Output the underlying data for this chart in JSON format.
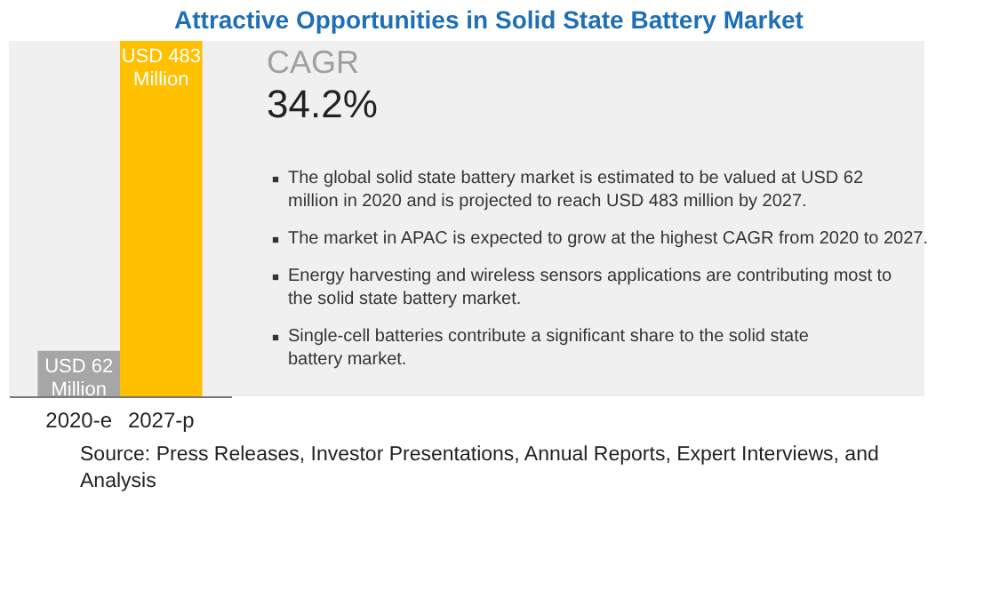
{
  "chart_data": {
    "type": "bar",
    "title": "Attractive Opportunities in Solid State Battery Market",
    "categories": [
      "2020-e",
      "2027-p"
    ],
    "values": [
      62,
      483
    ],
    "colors": [
      "#a6a6a6",
      "#ffc000"
    ],
    "value_labels": [
      "USD 62 Million",
      "USD 483 Million"
    ],
    "annotations": [
      "CAGR",
      "34.2%",
      "The global solid state battery market is estimated to be valued at USD 62 million in 2020 and is projected to reach USD 483 million by 2027.",
      "The market in APAC is expected to grow at the highest CAGR from 2020 to 2027.",
      "Energy harvesting and wireless sensors applications are contributing most to the solid state battery market.",
      "Single-cell batteries contribute a significant share to the solid state battery market.",
      "Source: Press Releases, Investor Presentations, Annual Reports, Expert Interviews, and Analysis"
    ]
  }
}
